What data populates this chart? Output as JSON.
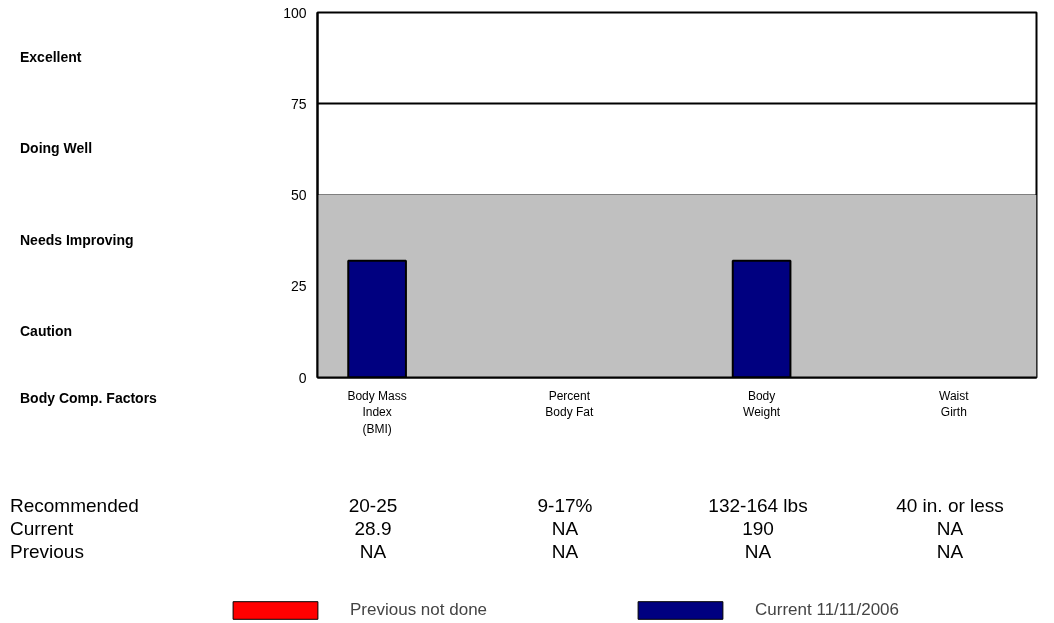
{
  "chart_data": {
    "type": "bar",
    "categories": [
      "Body Mass\nIndex\n(BMI)",
      "Percent\nBody Fat",
      "Body\nWeight",
      "Waist\nGirth"
    ],
    "series": [
      {
        "name": "Previous not done",
        "color": "#ff0000",
        "values": [
          null,
          null,
          null,
          null
        ]
      },
      {
        "name": "Current 11/11/2006",
        "color": "#000080",
        "values": [
          32,
          null,
          32,
          null
        ]
      }
    ],
    "ylim": [
      0,
      100
    ],
    "yticks": [
      0,
      25,
      50,
      75,
      100
    ],
    "grid": "y",
    "legend": "bottom",
    "bands": [
      {
        "axis": "y",
        "from": 0,
        "to": 50,
        "color": "#c0c0c0"
      }
    ],
    "annotations": [
      "Excellent",
      "Doing Well",
      "Needs Improving",
      "Caution",
      "Body Comp. Factors",
      "Recommended",
      "20-25",
      "9-17%",
      "132-164 lbs",
      "40 in. or less",
      "Current",
      "28.9",
      "NA",
      "190",
      "NA",
      "Previous",
      "NA",
      "NA",
      "NA",
      "NA"
    ]
  }
}
